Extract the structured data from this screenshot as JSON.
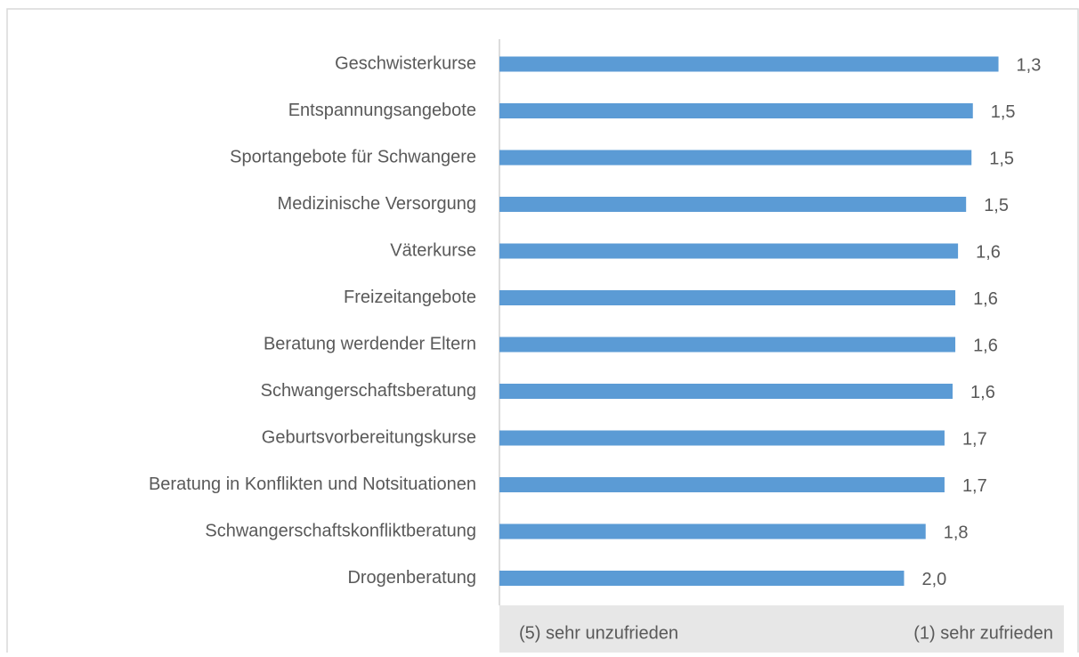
{
  "chart_data": {
    "type": "bar",
    "orientation": "horizontal",
    "categories": [
      "Geschwisterkurse",
      "Entspannungsangebote",
      "Sportangebote für Schwangere",
      "Medizinische Versorgung",
      "Väterkurse",
      "Freizeitangebote",
      "Beratung werdender Eltern",
      "Schwangerschaftsberatung",
      "Geburtsvorbereitungskurse",
      "Beratung in Konflikten und Notsituationen",
      "Schwangerschaftskonfliktberatung",
      "Drogenberatung"
    ],
    "values": [
      1.3,
      1.49,
      1.5,
      1.54,
      1.6,
      1.62,
      1.62,
      1.64,
      1.7,
      1.7,
      1.84,
      2.0
    ],
    "value_labels": [
      "1,3",
      "1,5",
      "1,5",
      "1,5",
      "1,6",
      "1,6",
      "1,6",
      "1,6",
      "1,7",
      "1,7",
      "1,8",
      "2,0"
    ],
    "color": "#5b9bd5",
    "xlim": [
      5,
      1
    ],
    "xticks": [
      {
        "value": 5,
        "label": "(5) sehr unzufrieden"
      },
      {
        "value": 1,
        "label": "(1) sehr zufrieden"
      }
    ]
  }
}
